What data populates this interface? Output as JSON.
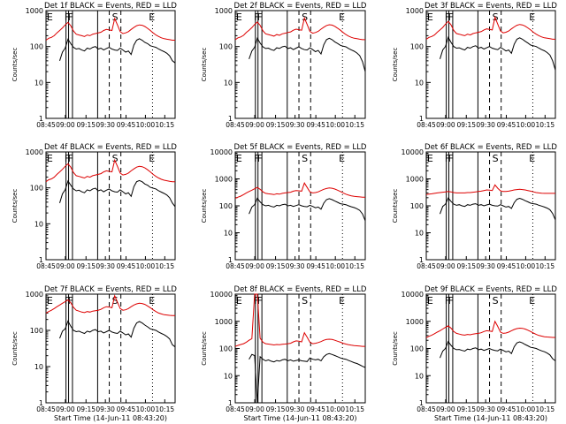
{
  "chart_data": [
    {
      "type": "line",
      "title": "Det 1f BLACK = Events, RED = LLD",
      "ylabel": "Counts/sec",
      "xlabel": "",
      "show_xlabel": false,
      "yticks": [
        "1",
        "10",
        "100",
        "1000"
      ],
      "markers": [
        "E",
        "F",
        "F",
        "S",
        "E"
      ],
      "series": [
        {
          "name": "Events",
          "color": "#000000",
          "values": [
            0,
            0,
            0,
            0,
            0,
            40,
            70,
            90,
            160,
            120,
            95,
            85,
            88,
            80,
            75,
            90,
            85,
            95,
            100,
            85,
            90,
            80,
            88,
            95,
            85,
            80,
            78,
            90,
            80,
            70,
            75,
            60,
            110,
            150,
            165,
            150,
            130,
            120,
            105,
            100,
            95,
            85,
            78,
            72,
            65,
            55,
            40,
            35
          ]
        },
        {
          "name": "LLD",
          "color": "#dd0000",
          "values": [
            150,
            170,
            180,
            200,
            240,
            280,
            330,
            400,
            470,
            380,
            270,
            220,
            210,
            200,
            190,
            210,
            200,
            220,
            230,
            240,
            250,
            280,
            300,
            290,
            280,
            600,
            400,
            260,
            230,
            240,
            260,
            300,
            340,
            380,
            400,
            390,
            360,
            320,
            280,
            240,
            210,
            190,
            175,
            165,
            160,
            155,
            150,
            150
          ]
        }
      ]
    },
    {
      "type": "line",
      "title": "Det 2f BLACK = Events, RED = LLD",
      "ylabel": "Counts/sec",
      "xlabel": "",
      "show_xlabel": false,
      "yticks": [
        "1",
        "10",
        "100",
        "1000"
      ],
      "markers": [
        "E",
        "F",
        "F",
        "S",
        "E"
      ],
      "series": [
        {
          "name": "Events",
          "color": "#000000",
          "values": [
            0,
            0,
            0,
            0,
            0,
            45,
            75,
            95,
            170,
            125,
            98,
            88,
            90,
            82,
            78,
            92,
            88,
            98,
            102,
            88,
            92,
            82,
            90,
            98,
            88,
            82,
            80,
            92,
            82,
            72,
            78,
            62,
            112,
            155,
            170,
            155,
            135,
            122,
            108,
            102,
            98,
            88,
            80,
            74,
            66,
            56,
            38,
            20
          ]
        },
        {
          "name": "LLD",
          "color": "#dd0000",
          "values": [
            155,
            175,
            185,
            205,
            245,
            285,
            335,
            410,
            480,
            390,
            275,
            225,
            215,
            205,
            195,
            215,
            205,
            225,
            235,
            245,
            255,
            285,
            305,
            295,
            285,
            620,
            410,
            265,
            235,
            245,
            265,
            305,
            345,
            385,
            405,
            395,
            365,
            325,
            285,
            245,
            215,
            195,
            180,
            170,
            165,
            160,
            155,
            155
          ]
        }
      ]
    },
    {
      "type": "line",
      "title": "Det 3f BLACK = Events, RED = LLD",
      "ylabel": "Counts/sec",
      "xlabel": "",
      "show_xlabel": false,
      "yticks": [
        "1",
        "10",
        "100",
        "1000"
      ],
      "markers": [
        "E",
        "F",
        "F",
        "S",
        "E"
      ],
      "series": [
        {
          "name": "Events",
          "color": "#000000",
          "values": [
            0,
            0,
            0,
            0,
            0,
            45,
            80,
            100,
            180,
            130,
            100,
            90,
            92,
            85,
            80,
            95,
            90,
            100,
            105,
            90,
            95,
            85,
            92,
            100,
            90,
            85,
            82,
            95,
            85,
            75,
            80,
            65,
            115,
            160,
            175,
            160,
            140,
            125,
            110,
            105,
            100,
            90,
            82,
            76,
            68,
            58,
            40,
            22
          ]
        },
        {
          "name": "LLD",
          "color": "#dd0000",
          "values": [
            160,
            180,
            190,
            210,
            250,
            290,
            340,
            420,
            500,
            400,
            280,
            230,
            220,
            210,
            200,
            220,
            210,
            230,
            240,
            250,
            260,
            290,
            310,
            300,
            290,
            650,
            420,
            270,
            240,
            250,
            270,
            310,
            350,
            390,
            410,
            400,
            370,
            330,
            290,
            250,
            220,
            200,
            185,
            175,
            170,
            165,
            160,
            160
          ]
        }
      ]
    },
    {
      "type": "line",
      "title": "Det 4f BLACK = Events, RED = LLD",
      "ylabel": "Counts/sec",
      "xlabel": "",
      "show_xlabel": false,
      "yticks": [
        "1",
        "10",
        "100",
        "1000"
      ],
      "markers": [
        "E",
        "F",
        "F",
        "S",
        "E"
      ],
      "series": [
        {
          "name": "Events",
          "color": "#000000",
          "values": [
            0,
            0,
            0,
            0,
            0,
            38,
            68,
            88,
            155,
            118,
            93,
            83,
            86,
            78,
            73,
            88,
            83,
            93,
            98,
            83,
            88,
            78,
            86,
            93,
            83,
            78,
            76,
            88,
            78,
            68,
            73,
            58,
            108,
            148,
            160,
            148,
            128,
            118,
            103,
            98,
            93,
            83,
            76,
            70,
            63,
            53,
            38,
            30
          ]
        },
        {
          "name": "LLD",
          "color": "#dd0000",
          "values": [
            148,
            168,
            178,
            198,
            238,
            278,
            328,
            398,
            465,
            378,
            268,
            218,
            208,
            198,
            188,
            208,
            198,
            218,
            228,
            238,
            248,
            278,
            298,
            288,
            278,
            590,
            398,
            258,
            228,
            238,
            258,
            298,
            338,
            378,
            398,
            388,
            358,
            318,
            278,
            238,
            208,
            188,
            173,
            163,
            158,
            153,
            148,
            148
          ]
        }
      ]
    },
    {
      "type": "line",
      "title": "Det 5f BLACK = Events, RED = LLD",
      "ylabel": "Counts/sec",
      "xlabel": "",
      "show_xlabel": false,
      "yticks": [
        "1",
        "10",
        "100",
        "1000",
        "10000"
      ],
      "markers": [
        "E",
        "F",
        "F",
        "S",
        "E"
      ],
      "series": [
        {
          "name": "Events",
          "color": "#000000",
          "values": [
            0,
            0,
            0,
            0,
            0,
            50,
            90,
            110,
            190,
            140,
            110,
            100,
            105,
            95,
            90,
            105,
            100,
            110,
            115,
            100,
            105,
            95,
            102,
            110,
            100,
            95,
            92,
            105,
            95,
            85,
            90,
            75,
            125,
            170,
            185,
            170,
            150,
            135,
            120,
            115,
            110,
            100,
            92,
            86,
            78,
            68,
            50,
            28
          ]
        },
        {
          "name": "LLD",
          "color": "#dd0000",
          "values": [
            190,
            210,
            230,
            260,
            300,
            340,
            380,
            430,
            480,
            410,
            330,
            290,
            280,
            270,
            260,
            280,
            270,
            290,
            300,
            310,
            320,
            350,
            370,
            360,
            350,
            700,
            480,
            330,
            300,
            310,
            330,
            370,
            410,
            440,
            460,
            450,
            420,
            380,
            340,
            300,
            270,
            250,
            235,
            225,
            220,
            215,
            210,
            210
          ]
        }
      ]
    },
    {
      "type": "line",
      "title": "Det 6f BLACK = Events, RED = LLD",
      "ylabel": "Counts/sec",
      "xlabel": "",
      "show_xlabel": false,
      "yticks": [
        "1",
        "10",
        "100",
        "1000",
        "10000"
      ],
      "markers": [
        "E",
        "F",
        "F",
        "S",
        "E"
      ],
      "series": [
        {
          "name": "Events",
          "color": "#000000",
          "values": [
            0,
            0,
            0,
            0,
            0,
            50,
            95,
            115,
            195,
            145,
            115,
            105,
            110,
            100,
            95,
            110,
            105,
            115,
            120,
            105,
            110,
            100,
            108,
            115,
            105,
            100,
            98,
            110,
            100,
            90,
            95,
            80,
            130,
            175,
            190,
            175,
            155,
            140,
            125,
            120,
            115,
            105,
            98,
            90,
            82,
            72,
            52,
            30
          ]
        },
        {
          "name": "LLD",
          "color": "#dd0000",
          "values": [
            260,
            270,
            280,
            290,
            300,
            310,
            320,
            330,
            340,
            330,
            310,
            300,
            300,
            300,
            300,
            310,
            310,
            320,
            330,
            340,
            350,
            370,
            390,
            380,
            370,
            600,
            450,
            360,
            340,
            340,
            350,
            370,
            390,
            400,
            410,
            400,
            390,
            370,
            350,
            330,
            310,
            300,
            295,
            290,
            290,
            290,
            290,
            290
          ]
        }
      ]
    },
    {
      "type": "line",
      "title": "Det 7f BLACK = Events, RED = LLD",
      "ylabel": "Counts/sec",
      "xlabel": "Start Time (14-Jun-11 08:43:20)",
      "show_xlabel": true,
      "yticks": [
        "1",
        "10",
        "100",
        "1000"
      ],
      "markers": [
        "E",
        "F",
        "F",
        "S",
        "E"
      ],
      "series": [
        {
          "name": "Events",
          "color": "#000000",
          "values": [
            0,
            0,
            0,
            0,
            0,
            60,
            95,
            110,
            180,
            130,
            100,
            92,
            95,
            88,
            82,
            95,
            90,
            100,
            105,
            92,
            95,
            85,
            92,
            100,
            90,
            85,
            82,
            95,
            85,
            75,
            80,
            65,
            115,
            160,
            175,
            160,
            140,
            125,
            110,
            105,
            100,
            90,
            82,
            76,
            68,
            58,
            40,
            35
          ]
        },
        {
          "name": "LLD",
          "color": "#dd0000",
          "values": [
            300,
            330,
            360,
            400,
            450,
            500,
            560,
            620,
            700,
            580,
            430,
            360,
            340,
            320,
            310,
            330,
            320,
            340,
            350,
            360,
            380,
            420,
            450,
            440,
            420,
            900,
            600,
            400,
            360,
            370,
            400,
            450,
            500,
            540,
            560,
            550,
            520,
            470,
            420,
            370,
            330,
            300,
            285,
            270,
            265,
            260,
            255,
            255
          ]
        }
      ]
    },
    {
      "type": "line",
      "title": "Det 8f BLACK = Events, RED = LLD",
      "ylabel": "Counts/sec",
      "xlabel": "Start Time (14-Jun-11 08:43:20)",
      "show_xlabel": true,
      "yticks": [
        "1",
        "10",
        "100",
        "1000",
        "10000"
      ],
      "markers": [
        "E",
        "F",
        "F",
        "S",
        "E"
      ],
      "series": [
        {
          "name": "Events",
          "color": "#000000",
          "values": [
            0,
            0,
            0,
            0,
            0,
            40,
            60,
            55,
            1,
            50,
            40,
            35,
            38,
            34,
            32,
            36,
            34,
            38,
            40,
            35,
            38,
            34,
            36,
            38,
            35,
            34,
            33,
            45,
            40,
            38,
            40,
            35,
            50,
            60,
            65,
            60,
            55,
            50,
            45,
            42,
            40,
            36,
            33,
            30,
            28,
            25,
            22,
            20
          ]
        },
        {
          "name": "LLD",
          "color": "#dd0000",
          "values": [
            120,
            130,
            140,
            150,
            170,
            200,
            230,
            10000,
            10000,
            240,
            170,
            150,
            145,
            140,
            135,
            140,
            138,
            142,
            145,
            150,
            155,
            175,
            190,
            185,
            175,
            380,
            260,
            170,
            150,
            155,
            165,
            180,
            200,
            215,
            220,
            215,
            200,
            185,
            170,
            155,
            145,
            138,
            132,
            128,
            125,
            122,
            120,
            120
          ]
        }
      ]
    },
    {
      "type": "line",
      "title": "Det 9f BLACK = Events, RED = LLD",
      "ylabel": "Counts/sec",
      "xlabel": "Start Time (14-Jun-11 08:43:20)",
      "show_xlabel": true,
      "yticks": [
        "1",
        "10",
        "100",
        "1000",
        "10000"
      ],
      "markers": [
        "E",
        "F",
        "F",
        "S",
        "E"
      ],
      "series": [
        {
          "name": "Events",
          "color": "#000000",
          "values": [
            0,
            0,
            0,
            0,
            0,
            45,
            80,
            100,
            180,
            130,
            100,
            90,
            92,
            85,
            80,
            95,
            90,
            100,
            105,
            90,
            95,
            85,
            92,
            100,
            90,
            85,
            82,
            95,
            85,
            75,
            80,
            65,
            115,
            160,
            175,
            160,
            140,
            125,
            110,
            105,
            100,
            90,
            82,
            76,
            68,
            58,
            42,
            35
          ]
        },
        {
          "name": "LLD",
          "color": "#dd0000",
          "values": [
            250,
            280,
            310,
            350,
            400,
            450,
            520,
            600,
            680,
            560,
            420,
            360,
            340,
            320,
            310,
            330,
            320,
            340,
            350,
            360,
            380,
            420,
            450,
            440,
            420,
            1000,
            650,
            400,
            360,
            370,
            400,
            450,
            500,
            540,
            560,
            550,
            520,
            470,
            420,
            370,
            330,
            300,
            285,
            270,
            265,
            260,
            255,
            255
          ]
        }
      ]
    }
  ],
  "xaxis": {
    "tick_labels": [
      "08:45",
      "09:00",
      "09:15",
      "09:30",
      "09:45",
      "10:00",
      "10:15"
    ]
  }
}
